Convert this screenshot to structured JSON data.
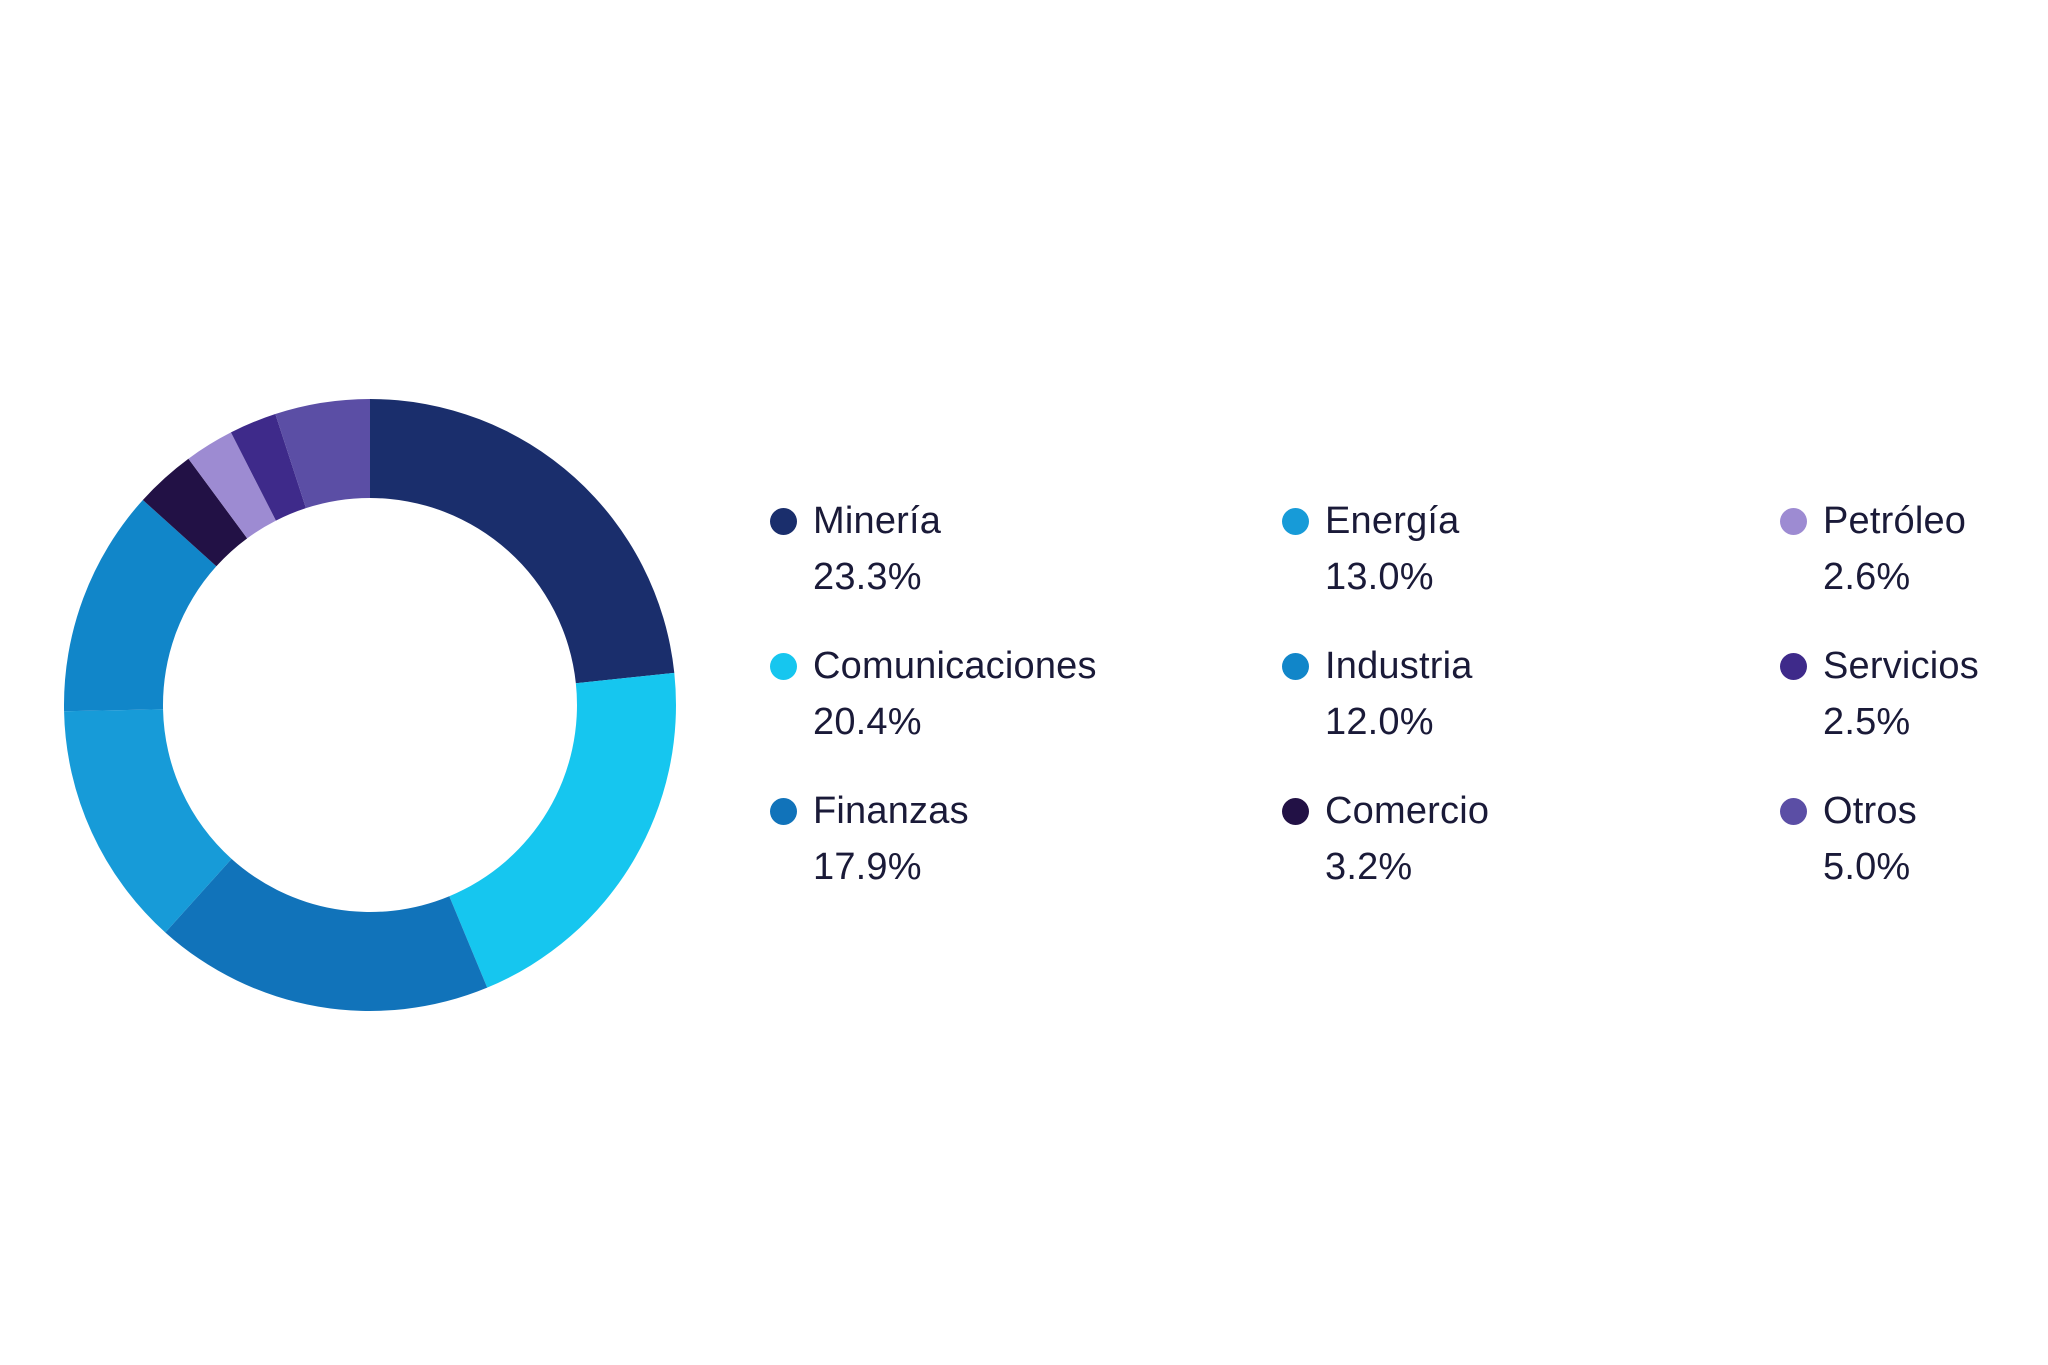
{
  "chart_data": {
    "type": "donut",
    "title": "",
    "categories": [
      "Minería",
      "Comunicaciones",
      "Finanzas",
      "Energía",
      "Industria",
      "Comercio",
      "Petróleo",
      "Servicios",
      "Otros"
    ],
    "values": [
      23.3,
      20.4,
      17.9,
      13.0,
      12.0,
      3.2,
      2.6,
      2.5,
      5.0
    ],
    "colors": [
      "#1A2E6C",
      "#16C6EF",
      "#1173BA",
      "#179BD8",
      "#1186C9",
      "#221145",
      "#9D8BD2",
      "#3E2A8A",
      "#5B4EA5"
    ],
    "start_angle_deg": 0,
    "direction": "clockwise",
    "inner_radius_ratio": 0.676,
    "outer_radius_px": 306,
    "inner_radius_px": 207,
    "hole_color": "#FFFFFF",
    "background": "#FFFFFF",
    "legend_position": "right",
    "legend_text_color": "#1A1A38"
  },
  "legend": {
    "columns": [
      {
        "items": [
          {
            "label": "Minería",
            "value": "23.3%",
            "color_index": 0
          },
          {
            "label": "Comunicaciones",
            "value": "20.4%",
            "color_index": 1
          },
          {
            "label": "Finanzas",
            "value": "17.9%",
            "color_index": 2
          }
        ]
      },
      {
        "items": [
          {
            "label": "Energía",
            "value": "13.0%",
            "color_index": 3
          },
          {
            "label": "Industria",
            "value": "12.0%",
            "color_index": 4
          },
          {
            "label": "Comercio",
            "value": "3.2%",
            "color_index": 5
          }
        ]
      },
      {
        "items": [
          {
            "label": "Petróleo",
            "value": "2.6%",
            "color_index": 6
          },
          {
            "label": "Servicios",
            "value": "2.5%",
            "color_index": 7
          },
          {
            "label": "Otros",
            "value": "5.0%",
            "color_index": 8
          }
        ]
      }
    ]
  }
}
